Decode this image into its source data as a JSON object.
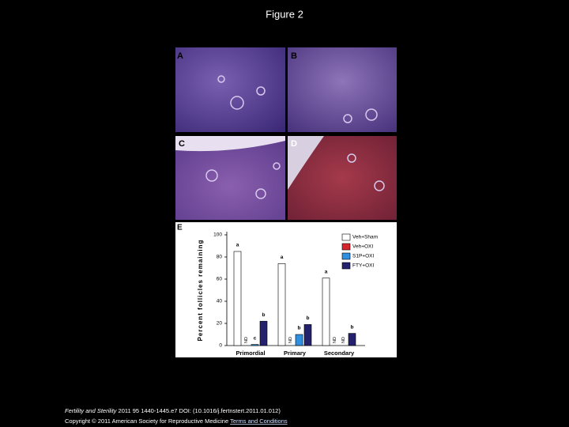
{
  "page_title": "Figure 2",
  "panels": [
    "A",
    "B",
    "C",
    "D"
  ],
  "citation": {
    "journal": "Fertility and Sterility",
    "rest": "2011 95 1440-1445.e7 DOI: (10.1016/j.fertnstert.2011.01.012)",
    "copyright": "Copyright © 2011 American Society for Reproductive Medicine",
    "terms": "Terms and Conditions"
  },
  "chart_data": {
    "type": "bar",
    "panel_label": "E",
    "y_label": "Percent follicles remaining",
    "categories": [
      "Primordial",
      "Primary",
      "Secondary"
    ],
    "series": [
      {
        "name": "Veh+Sham",
        "color": "#ffffff",
        "values": [
          85,
          74,
          61
        ],
        "letters": [
          "a",
          "a",
          "a"
        ]
      },
      {
        "name": "Veh+OXI",
        "color": "#d7262b",
        "values": [
          null,
          null,
          null
        ],
        "letters": [
          null,
          null,
          null
        ]
      },
      {
        "name": "S1P+OXI",
        "color": "#2f8fe0",
        "values": [
          1,
          10,
          null
        ],
        "letters": [
          "c",
          "b",
          null
        ]
      },
      {
        "name": "FTY+OXI",
        "color": "#24226e",
        "values": [
          22,
          19,
          11
        ],
        "letters": [
          "b",
          "b",
          "b"
        ]
      }
    ],
    "missing_label": "ND",
    "ylim": [
      0,
      100
    ],
    "yticks": [
      0,
      20,
      40,
      60,
      80,
      100
    ]
  }
}
